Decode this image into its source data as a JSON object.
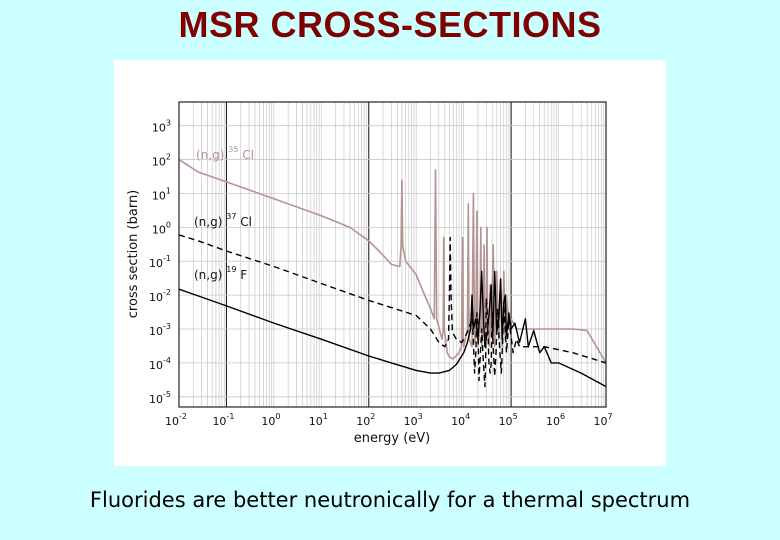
{
  "slide": {
    "title": "MSR CROSS-SECTIONS",
    "caption": "Fluorides are better neutronically for a thermal spectrum"
  },
  "colors": {
    "background": "#ccffff",
    "title": "#800000",
    "cl35": "#b39490",
    "cl37": "#000000",
    "f19": "#000000",
    "grid": "#c8c8c8",
    "grid_major": "#222222"
  },
  "chart_data": {
    "type": "line",
    "x_scale": "log",
    "y_scale": "log",
    "xlabel": "energy (eV)",
    "ylabel": "cross section (barn)",
    "xlim": [
      0.01,
      10000000
    ],
    "ylim": [
      5e-06,
      5000
    ],
    "x_ticks": [
      {
        "base": "10",
        "exp": "-2",
        "value": 0.01
      },
      {
        "base": "10",
        "exp": "-1",
        "value": 0.1
      },
      {
        "base": "10",
        "exp": "0",
        "value": 1
      },
      {
        "base": "10",
        "exp": "1",
        "value": 10
      },
      {
        "base": "10",
        "exp": "2",
        "value": 100
      },
      {
        "base": "10",
        "exp": "3",
        "value": 1000
      },
      {
        "base": "10",
        "exp": "4",
        "value": 10000
      },
      {
        "base": "10",
        "exp": "5",
        "value": 100000
      },
      {
        "base": "10",
        "exp": "6",
        "value": 1000000
      },
      {
        "base": "10",
        "exp": "7",
        "value": 10000000
      }
    ],
    "y_ticks": [
      {
        "base": "10",
        "exp": "3",
        "value": 1000
      },
      {
        "base": "10",
        "exp": "2",
        "value": 100
      },
      {
        "base": "10",
        "exp": "1",
        "value": 10
      },
      {
        "base": "10",
        "exp": "0",
        "value": 1
      },
      {
        "base": "10",
        "exp": "-1",
        "value": 0.1
      },
      {
        "base": "10",
        "exp": "-2",
        "value": 0.01
      },
      {
        "base": "10",
        "exp": "-3",
        "value": 0.001
      },
      {
        "base": "10",
        "exp": "-4",
        "value": 0.0001
      },
      {
        "base": "10",
        "exp": "-5",
        "value": 1e-05
      }
    ],
    "series": [
      {
        "name": "(n,g) 35Cl",
        "label_prefix": "(n,g)",
        "label_mass": "35",
        "label_element": "Cl",
        "color": "#b39490",
        "dash": "none",
        "points": [
          [
            0.01,
            100
          ],
          [
            0.0253,
            43
          ],
          [
            0.1,
            22
          ],
          [
            1,
            7
          ],
          [
            10,
            2.2
          ],
          [
            40,
            1.0
          ],
          [
            100,
            0.4
          ],
          [
            200,
            0.15
          ],
          [
            300,
            0.08
          ],
          [
            450,
            0.07
          ],
          [
            480,
            0.3
          ],
          [
            500,
            25
          ],
          [
            520,
            0.3
          ],
          [
            600,
            0.1
          ],
          [
            1000,
            0.04
          ],
          [
            1500,
            0.01
          ],
          [
            2000,
            0.004
          ],
          [
            2400,
            0.002
          ],
          [
            2550,
            50
          ],
          [
            2700,
            0.002
          ],
          [
            3200,
            0.0008
          ],
          [
            3500,
            0.0005
          ],
          [
            3700,
            0.0009
          ],
          [
            3800,
            0.5
          ],
          [
            3900,
            0.001
          ],
          [
            4500,
            0.0002
          ],
          [
            5000,
            0.00015
          ],
          [
            6000,
            0.00013
          ],
          [
            8000,
            0.0002
          ],
          [
            9000,
            0.0003
          ],
          [
            9500,
            0.5
          ],
          [
            9800,
            0.0004
          ],
          [
            10000,
            0.0003
          ],
          [
            12000,
            0.001
          ],
          [
            12500,
            5
          ],
          [
            13000,
            0.0005
          ],
          [
            15000,
            0.0003
          ],
          [
            16000,
            10
          ],
          [
            17000,
            0.0004
          ],
          [
            18000,
            0.0006
          ],
          [
            19000,
            3
          ],
          [
            20000,
            0.0003
          ],
          [
            22000,
            0.001
          ],
          [
            23000,
            1
          ],
          [
            24000,
            0.0003
          ],
          [
            26000,
            0.002
          ],
          [
            27000,
            0.3
          ],
          [
            28000,
            0.0003
          ],
          [
            30000,
            0.003
          ],
          [
            31000,
            1
          ],
          [
            32000,
            0.001
          ],
          [
            35000,
            0.0003
          ],
          [
            36000,
            0.02
          ],
          [
            38000,
            0.0006
          ],
          [
            42000,
            0.3
          ],
          [
            45000,
            0.0003
          ],
          [
            50000,
            0.05
          ],
          [
            55000,
            0.0005
          ],
          [
            60000,
            0.03
          ],
          [
            65000,
            0.0003
          ],
          [
            70000,
            0.05
          ],
          [
            75000,
            0.0005
          ],
          [
            80000,
            0.01
          ],
          [
            90000,
            0.001
          ],
          [
            100000,
            0.002
          ],
          [
            130000,
            0.001
          ],
          [
            200000,
            0.001
          ],
          [
            500000,
            0.001
          ],
          [
            2000000,
            0.001
          ],
          [
            4000000,
            0.0009
          ],
          [
            10000000,
            0.0001
          ]
        ]
      },
      {
        "name": "(n,g) 37Cl",
        "label_prefix": "(n,g)",
        "label_mass": "37",
        "label_element": "Cl",
        "color": "#000000",
        "dash": "6,4",
        "points": [
          [
            0.01,
            0.6
          ],
          [
            0.0253,
            0.4
          ],
          [
            0.1,
            0.2
          ],
          [
            1,
            0.07
          ],
          [
            10,
            0.022
          ],
          [
            100,
            0.007
          ],
          [
            1000,
            0.0025
          ],
          [
            2000,
            0.001
          ],
          [
            3000,
            0.0004
          ],
          [
            4000,
            0.0003
          ],
          [
            4800,
            0.0005
          ],
          [
            5000,
            0.01
          ],
          [
            5200,
            0.5
          ],
          [
            5400,
            0.01
          ],
          [
            5800,
            0.0008
          ],
          [
            7000,
            0.0005
          ],
          [
            9000,
            0.0004
          ],
          [
            10000,
            0.0005
          ],
          [
            12000,
            0.0008
          ],
          [
            14000,
            0.0015
          ],
          [
            15000,
            0.003
          ],
          [
            16000,
            0.0004
          ],
          [
            17000,
            5e-05
          ],
          [
            17500,
            0.0001
          ],
          [
            18000,
            0.0002
          ],
          [
            19000,
            0.003
          ],
          [
            20000,
            0.001
          ],
          [
            21000,
            3e-05
          ],
          [
            22000,
            0.0001
          ],
          [
            24000,
            0.001
          ],
          [
            26000,
            0.0001
          ],
          [
            28000,
            2e-05
          ],
          [
            29000,
            0.0001
          ],
          [
            30000,
            0.008
          ],
          [
            32000,
            0.002
          ],
          [
            34000,
            0.0001
          ],
          [
            36000,
            5e-05
          ],
          [
            38000,
            0.0001
          ],
          [
            40000,
            0.003
          ],
          [
            42000,
            0.0003
          ],
          [
            45000,
            4e-05
          ],
          [
            48000,
            0.0002
          ],
          [
            52000,
            0.004
          ],
          [
            55000,
            0.0008
          ],
          [
            58000,
            0.0002
          ],
          [
            62000,
            5e-05
          ],
          [
            65000,
            0.0002
          ],
          [
            70000,
            0.005
          ],
          [
            75000,
            0.001
          ],
          [
            80000,
            0.0002
          ],
          [
            90000,
            0.002
          ],
          [
            100000,
            0.0006
          ],
          [
            110000,
            0.0002
          ],
          [
            130000,
            0.0005
          ],
          [
            150000,
            0.0003
          ],
          [
            200000,
            0.0003
          ],
          [
            500000,
            0.0003
          ],
          [
            2000000,
            0.0002
          ],
          [
            10000000,
            0.0001
          ]
        ]
      },
      {
        "name": "(n,g) 19F",
        "label_prefix": "(n,g)",
        "label_mass": "19",
        "label_element": "F",
        "color": "#000000",
        "dash": "none",
        "points": [
          [
            0.01,
            0.015
          ],
          [
            0.0253,
            0.0095
          ],
          [
            0.1,
            0.0048
          ],
          [
            1,
            0.0015
          ],
          [
            10,
            0.0005
          ],
          [
            100,
            0.00016
          ],
          [
            300,
            0.0001
          ],
          [
            1000,
            6e-05
          ],
          [
            2000,
            5e-05
          ],
          [
            3000,
            5e-05
          ],
          [
            5000,
            6e-05
          ],
          [
            7000,
            9e-05
          ],
          [
            10000,
            0.0002
          ],
          [
            12000,
            0.0004
          ],
          [
            14000,
            0.001
          ],
          [
            15000,
            0.01
          ],
          [
            16000,
            0.001
          ],
          [
            18000,
            0.002
          ],
          [
            20000,
            0.0005
          ],
          [
            22000,
            0.003
          ],
          [
            24000,
            0.05
          ],
          [
            26000,
            0.002
          ],
          [
            28000,
            0.0003
          ],
          [
            32000,
            0.0009
          ],
          [
            35000,
            0.004
          ],
          [
            38000,
            0.02
          ],
          [
            41000,
            0.0005
          ],
          [
            45000,
            0.05
          ],
          [
            50000,
            0.0008
          ],
          [
            55000,
            0.002
          ],
          [
            60000,
            0.03
          ],
          [
            65000,
            0.0005
          ],
          [
            70000,
            0.006
          ],
          [
            75000,
            0.01
          ],
          [
            80000,
            0.0006
          ],
          [
            90000,
            0.003
          ],
          [
            100000,
            0.001
          ],
          [
            120000,
            0.0015
          ],
          [
            150000,
            0.0004
          ],
          [
            200000,
            0.002
          ],
          [
            230000,
            0.0003
          ],
          [
            300000,
            0.0009
          ],
          [
            400000,
            0.0002
          ],
          [
            500000,
            0.0003
          ],
          [
            700000,
            0.0001
          ],
          [
            1000000,
            0.0001
          ],
          [
            3000000,
            5e-05
          ],
          [
            10000000,
            2e-05
          ]
        ]
      }
    ]
  }
}
